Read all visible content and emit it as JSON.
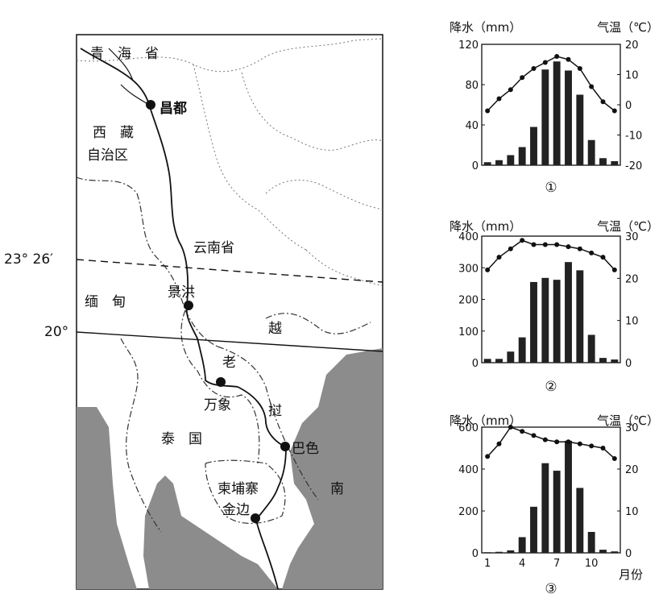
{
  "map": {
    "labels": {
      "qinghai": "青　海　省",
      "changdu": "昌都",
      "xizang_1": "西　藏",
      "xizang_2": "自治区",
      "yunnan": "云南省",
      "myanmar": "缅　甸",
      "jinghong": "景洪",
      "laos_1": "老",
      "laos_2": "挝",
      "vietnam_1": "越",
      "vietnam_2": "南",
      "vientiane": "万象",
      "thailand": "泰　国",
      "pakse": "巴色",
      "cambodia": "柬埔寨",
      "phnompenh": "金边",
      "lat_tropic": "23° 26′",
      "lat_20": "20°"
    }
  },
  "chart_data": [
    {
      "type": "bar",
      "id": "①",
      "left_axis_title": "降水（mm）",
      "right_axis_title": "气温（℃）",
      "left_ticks": [
        "120",
        "80",
        "40",
        "0"
      ],
      "right_ticks": [
        "20",
        "10",
        "0",
        "-10",
        "-20"
      ],
      "ylim_precip": [
        0,
        120
      ],
      "ylim_temp": [
        -20,
        20
      ],
      "months": [
        1,
        2,
        3,
        4,
        5,
        6,
        7,
        8,
        9,
        10,
        11,
        12
      ],
      "precip": [
        3,
        5,
        10,
        18,
        38,
        95,
        103,
        94,
        70,
        25,
        7,
        4
      ],
      "temp": [
        -2,
        2,
        5,
        9,
        12,
        14,
        16,
        15,
        12,
        6,
        1,
        -2
      ]
    },
    {
      "type": "bar",
      "id": "②",
      "left_axis_title": "降水（mm）",
      "right_axis_title": "气温（℃）",
      "left_ticks": [
        "400",
        "300",
        "200",
        "100",
        "0"
      ],
      "right_ticks": [
        "30",
        "20",
        "10",
        "0"
      ],
      "ylim_precip": [
        0,
        400
      ],
      "ylim_temp": [
        0,
        30
      ],
      "months": [
        1,
        2,
        3,
        4,
        5,
        6,
        7,
        8,
        9,
        10,
        11,
        12
      ],
      "precip": [
        12,
        12,
        35,
        80,
        255,
        268,
        262,
        318,
        292,
        88,
        15,
        10
      ],
      "temp": [
        22,
        25,
        27,
        29,
        28,
        28,
        28,
        27.5,
        27,
        26,
        25,
        22
      ]
    },
    {
      "type": "bar",
      "id": "③",
      "left_axis_title": "降水（mm）",
      "right_axis_title": "气温（℃）",
      "left_ticks": [
        "600",
        "400",
        "200",
        "0"
      ],
      "right_ticks": [
        "30",
        "20",
        "10",
        "0"
      ],
      "x_ticks": [
        "1",
        "4",
        "7",
        "10"
      ],
      "x_axis_title": "月份",
      "ylim_precip": [
        0,
        600
      ],
      "ylim_temp": [
        0,
        30
      ],
      "months": [
        1,
        2,
        3,
        4,
        5,
        6,
        7,
        8,
        9,
        10,
        11,
        12
      ],
      "precip": [
        3,
        5,
        12,
        75,
        220,
        428,
        392,
        535,
        310,
        100,
        15,
        7
      ],
      "temp": [
        23,
        26,
        30,
        29,
        28,
        27,
        26.5,
        26.5,
        26,
        25.5,
        25,
        22.5
      ]
    }
  ]
}
